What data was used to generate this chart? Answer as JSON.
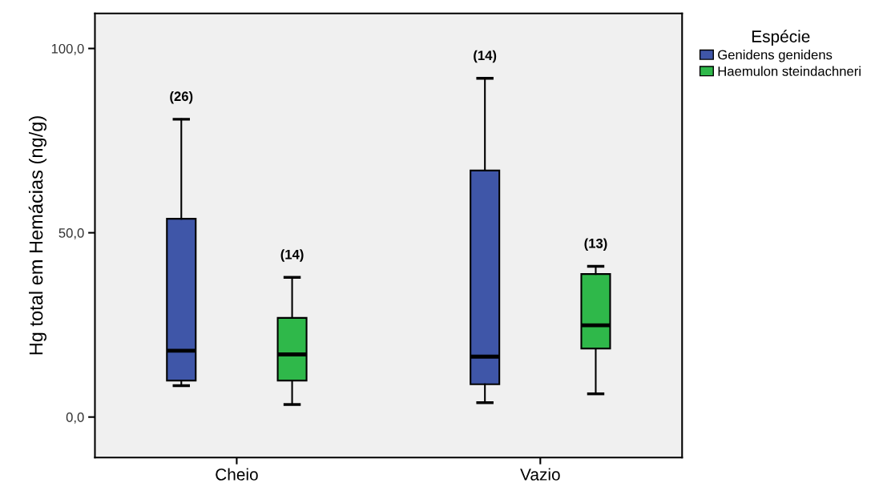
{
  "chart_data": {
    "type": "box",
    "ylabel": "Hg total em Hemácias (ng/g)",
    "legend_title": "Espécie",
    "legend": "right",
    "grid": false,
    "categories": [
      "Cheio",
      "Vazio"
    ],
    "ylim": [
      -11,
      109.5
    ],
    "yticks": [
      {
        "value": 0,
        "label": "0,0"
      },
      {
        "value": 50,
        "label": "50,0"
      },
      {
        "value": 100,
        "label": "100,0"
      }
    ],
    "series": [
      {
        "name": "Genidens genidens",
        "color": "#3f56a8",
        "value_labels": [
          "(26)",
          "(14)"
        ],
        "boxes": [
          {
            "low": 8.5,
            "q1": 9.9,
            "median": 18.0,
            "q3": 53.8,
            "high": 80.8
          },
          {
            "low": 3.9,
            "q1": 8.9,
            "median": 16.4,
            "q3": 66.9,
            "high": 91.9
          }
        ]
      },
      {
        "name": "Haemulon steindachneri",
        "color": "#2fb84a",
        "value_labels": [
          "(14)",
          "(13)"
        ],
        "boxes": [
          {
            "low": 3.4,
            "q1": 9.9,
            "median": 17.0,
            "q3": 26.9,
            "high": 37.9
          },
          {
            "low": 6.3,
            "q1": 18.6,
            "median": 24.9,
            "q3": 38.8,
            "high": 40.9
          }
        ]
      }
    ]
  }
}
